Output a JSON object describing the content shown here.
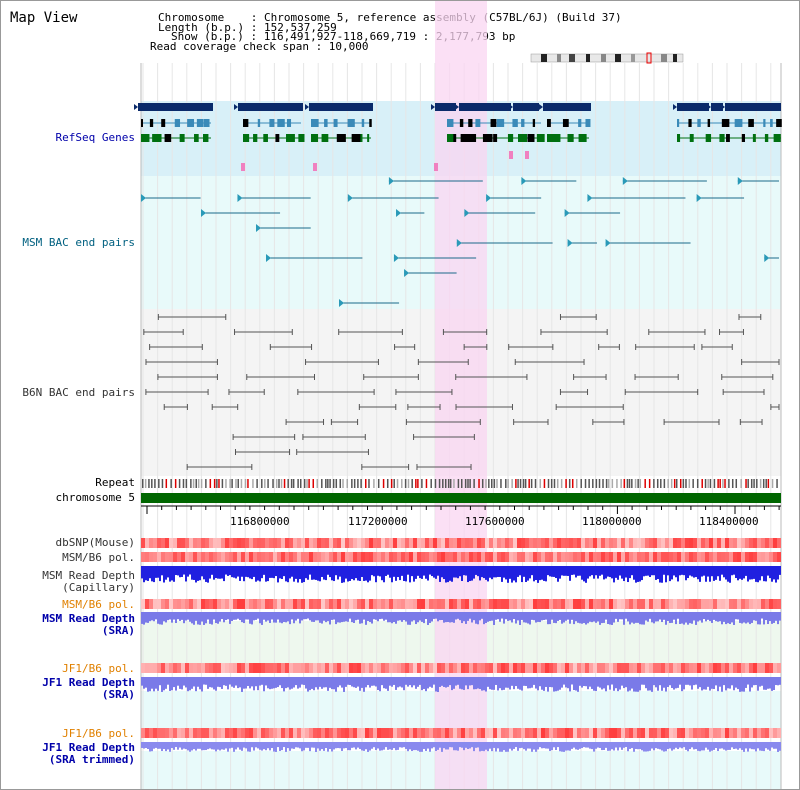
{
  "view_title": "Map View",
  "header": {
    "chromosome_line": "Chromosome    : Chromosome 5, reference assembly (C57BL/6J) (Build 37)",
    "length_line": "Length (b.p.) : 152,537,259",
    "show_line": "Show (b.p.) : 116,491,927-118,669,719 : 2,177,793 bp",
    "coverage_line": "Read coverage check span : 10,000"
  },
  "tracks": {
    "refseq": "RefSeq Genes",
    "msm_bac": "MSM BAC end pairs",
    "b6n_bac": "B6N BAC end pairs",
    "repeat": "Repeat",
    "chromosome": "chromosome 5",
    "dbsnp": "dbSNP(Mouse)",
    "msm_b6_pol_1": "MSM/B6 pol.",
    "msm_read_depth_cap_1": "MSM Read Depth",
    "msm_read_depth_cap_2": "(Capillary)",
    "msm_b6_pol_2": "MSM/B6 pol.",
    "msm_read_depth_sra_1": "MSM Read Depth",
    "msm_read_depth_sra_2": "(SRA)",
    "jf1_b6_pol_1": "JF1/B6 pol.",
    "jf1_read_depth_sra_1": "JF1 Read Depth",
    "jf1_read_depth_sra_2": "(SRA)",
    "jf1_b6_pol_2": "JF1/B6 pol.",
    "jf1_read_depth_trim_1": "JF1 Read Depth",
    "jf1_read_depth_trim_2": "(SRA trimmed)"
  },
  "axis_ticks": [
    "116800000",
    "117200000",
    "117600000",
    "118000000",
    "118400000"
  ],
  "colors": {
    "label_blue": "#0000aa",
    "label_teal": "#006080",
    "label_orange": "#e08000",
    "label_gray": "#333333",
    "highlight": "#f9d6f2",
    "refseq_bg": "#d8f0f8",
    "msm_bg": "#e8fafa",
    "b6n_bg": "#f4f4f4",
    "chrom_green": "#006600",
    "gene_dark": "#0a2a6a",
    "gene_mid": "#3a8ab8",
    "gene_green": "#007010"
  }
}
